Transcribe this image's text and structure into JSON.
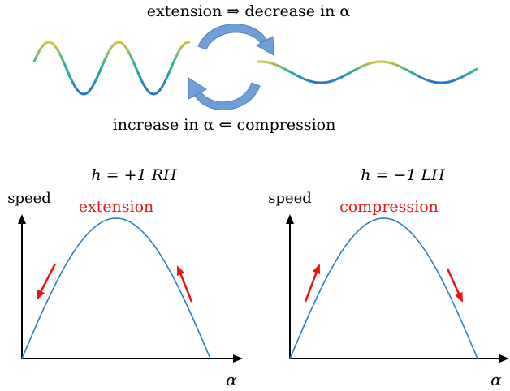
{
  "top_diagram": {
    "top_caption": "extension ⇒ decrease in α",
    "bottom_caption": "increase in α ⇐ compression"
  },
  "panels": [
    {
      "title": "h = +1  RH",
      "ylabel": "speed",
      "xlabel": "α",
      "curve_label": "extension",
      "left_arrow": "down",
      "right_arrow": "up"
    },
    {
      "title": "h = −1  LH",
      "ylabel": "speed",
      "xlabel": "α",
      "curve_label": "compression",
      "left_arrow": "up",
      "right_arrow": "down"
    }
  ],
  "colors": {
    "curve": "#2a7fc0",
    "red_text": "#e8161b",
    "red_arrow": "#ee1111",
    "circular_arrow": "#6f9fd8",
    "wave_gold": "#d6c23a",
    "wave_teal": "#27b39a",
    "wave_blue": "#2a74c8"
  }
}
